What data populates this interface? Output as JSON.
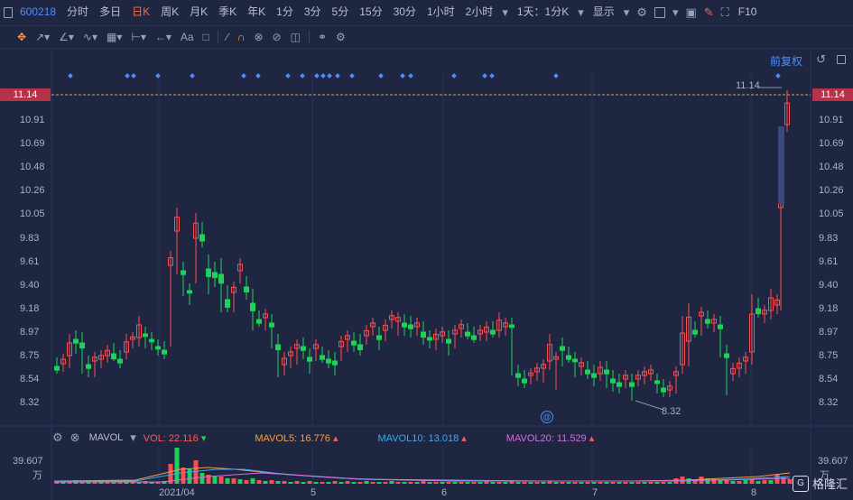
{
  "toolbar": {
    "code": "600218",
    "items": [
      "分时",
      "多日",
      "日K",
      "周K",
      "月K",
      "季K",
      "年K",
      "1分",
      "3分",
      "5分",
      "15分",
      "30分",
      "1小时",
      "2小时"
    ],
    "active": "日K",
    "period_select": "1天：1分K",
    "display_label": "显示",
    "f10_label": "F10"
  },
  "drawing_toolbar": {
    "text_tool": "Aa"
  },
  "chart": {
    "fuquan_label": "前复权",
    "price_levels": [
      "11.14",
      "10.91",
      "10.69",
      "10.48",
      "10.26",
      "10.05",
      "9.83",
      "9.61",
      "9.40",
      "9.18",
      "8.97",
      "8.75",
      "8.54",
      "8.32"
    ],
    "right_price_levels": [
      "11.14",
      "10.91",
      "10.69",
      "10.48",
      "10.26",
      "10.05",
      "9.83",
      "9.61",
      "9.40",
      "9.18",
      "8.97",
      "8.75",
      "8.54",
      "8.32"
    ],
    "last_price": "11.14",
    "high_marker": "11.14",
    "low_marker": "8.32",
    "colors": {
      "up": "#ff4d4f",
      "down": "#1fd15a",
      "grid": "#2c3456",
      "dash": "#d9a24a"
    }
  },
  "volume": {
    "indicator": "MAVOL",
    "vol": "VOL: 22.116",
    "mavol5": "MAVOL5: 16.776",
    "mavol10": "MAVOL10: 13.018",
    "mavol20": "MAVOL20: 11.529",
    "axis_top": "39.607",
    "axis_unit": "万",
    "colors": {
      "vol": "#ff5a5a",
      "mavol5": "#f0a04a",
      "mavol10": "#3fa8f0",
      "mavol20": "#d070d8"
    }
  },
  "dates": [
    "2021/04",
    "5",
    "6",
    "7",
    "8"
  ],
  "logo": {
    "text": "格隆汇"
  }
}
